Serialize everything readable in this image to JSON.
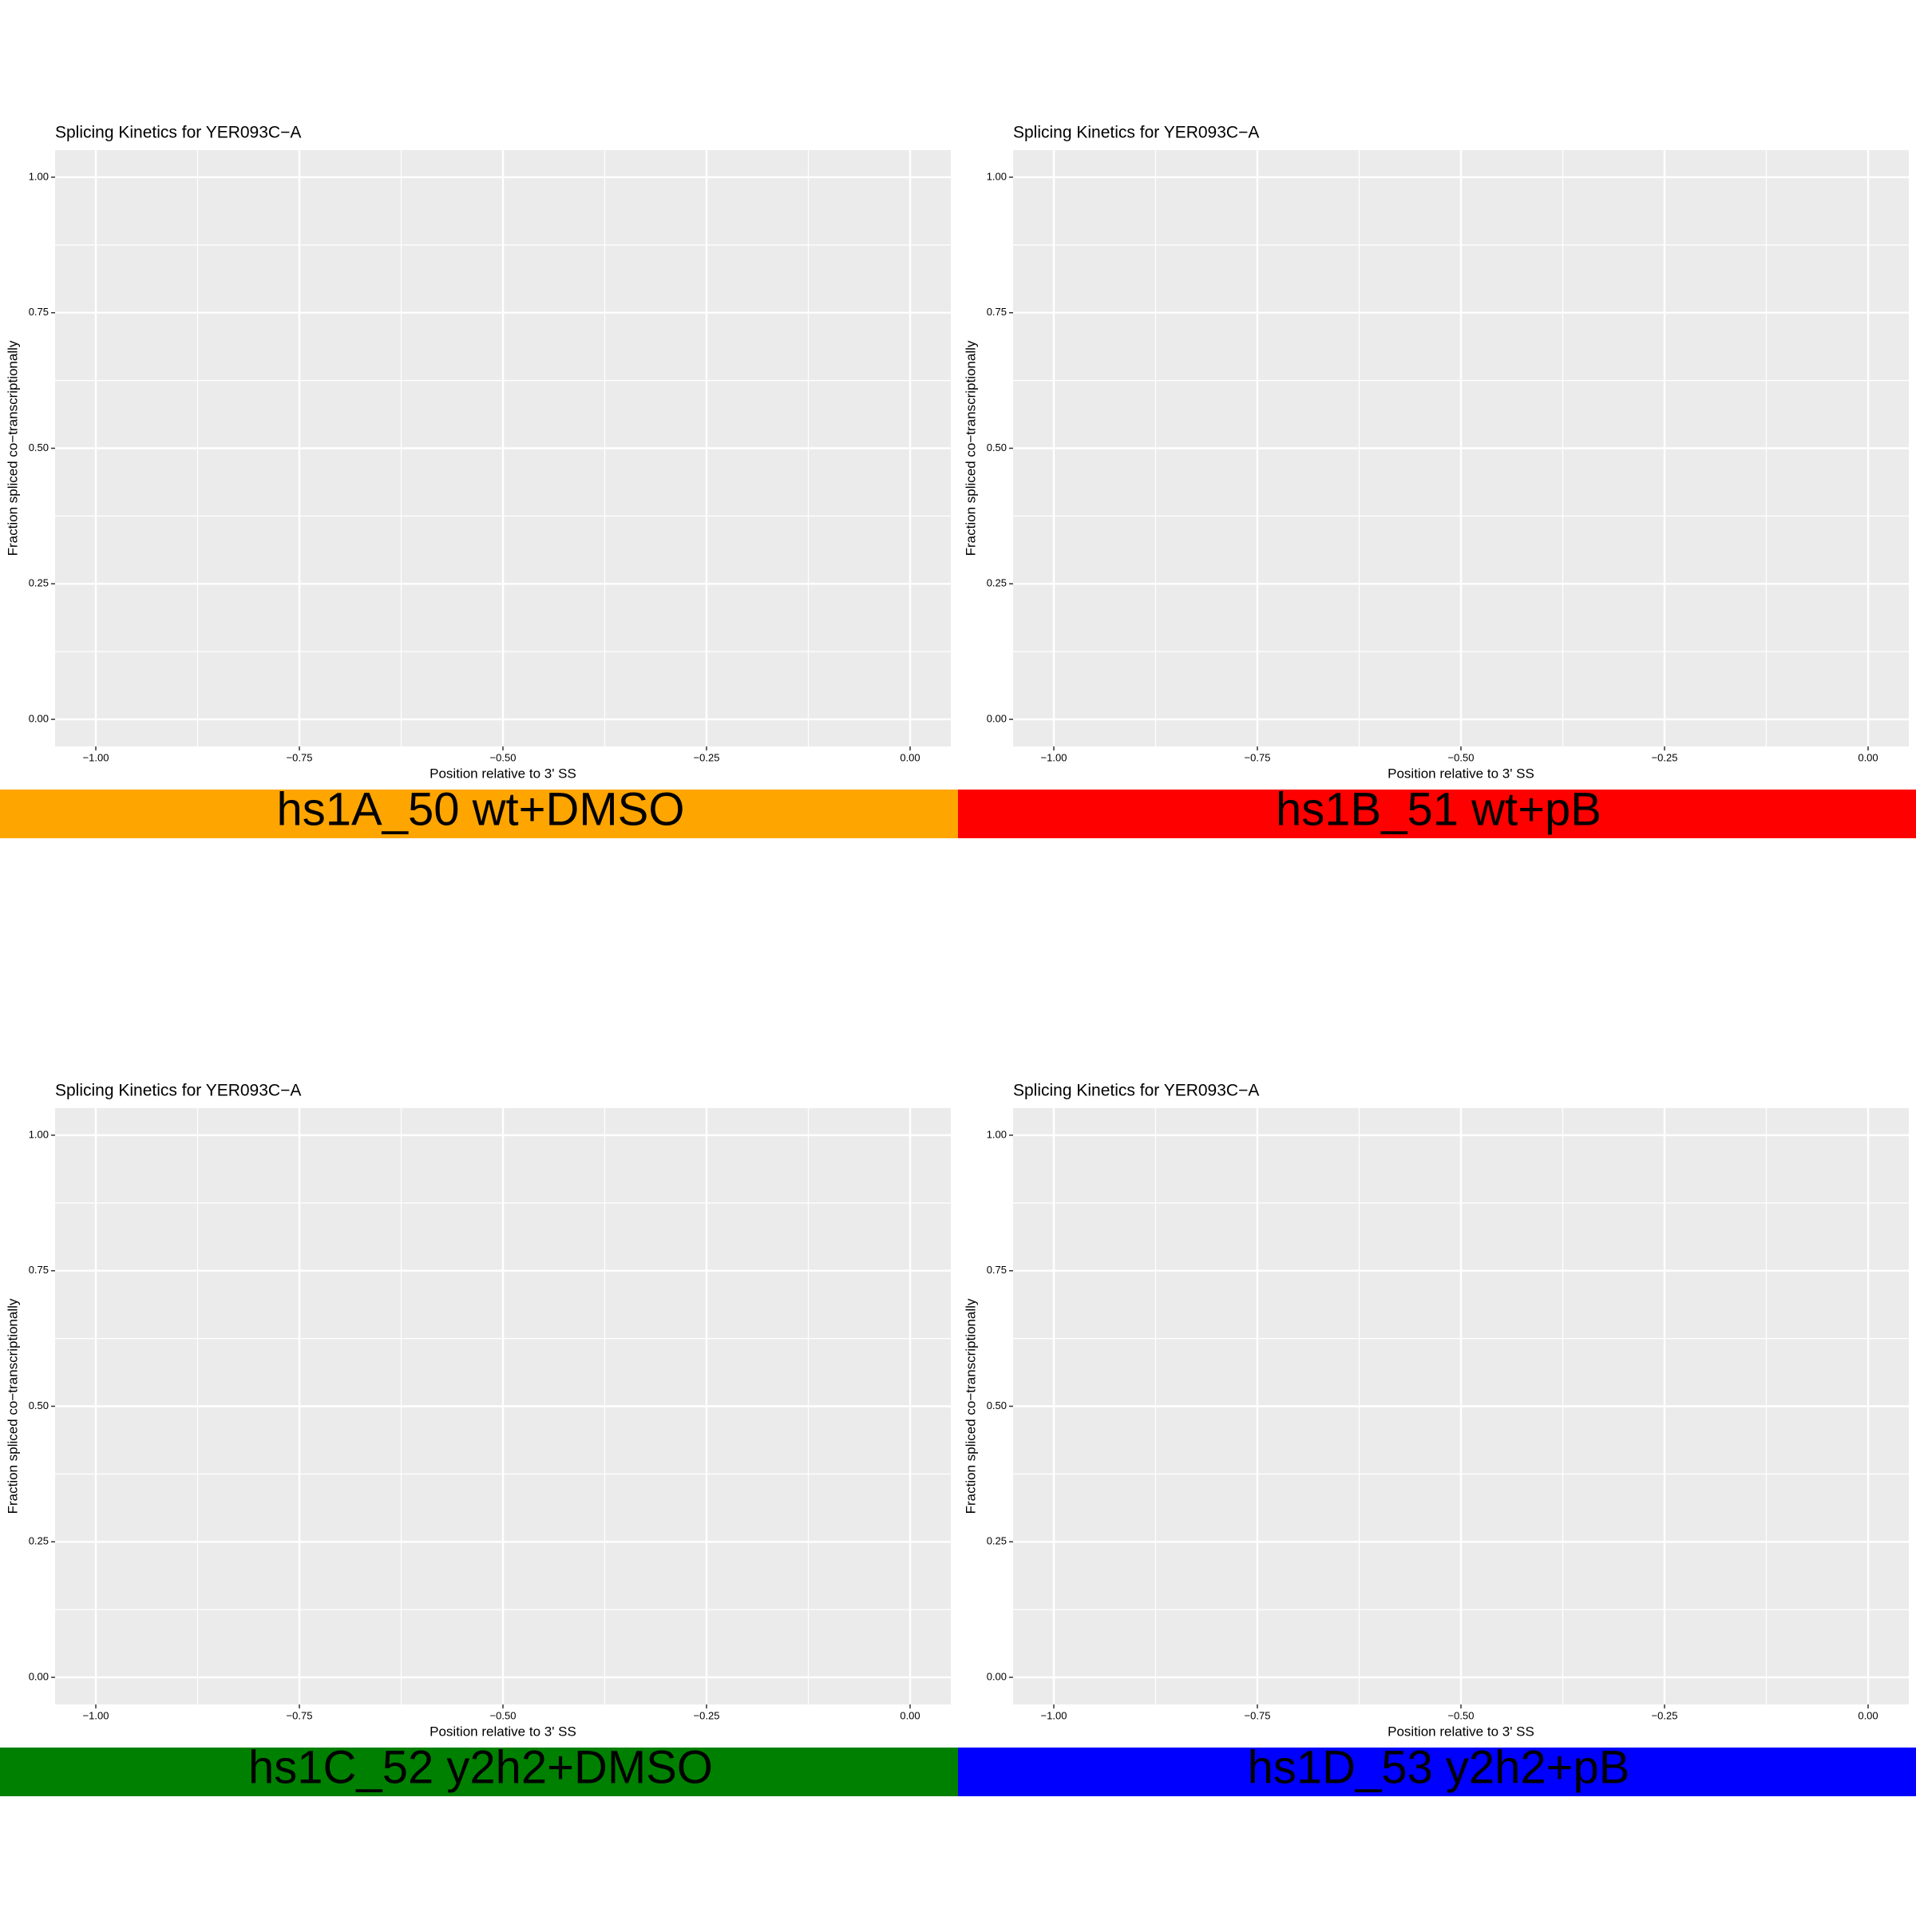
{
  "chart_data": [
    {
      "type": "scatter",
      "title": "Splicing Kinetics for YER093C−A",
      "xlabel": "Position relative to 3' SS",
      "ylabel": "Fraction spliced co−transcriptionally",
      "xlim": [
        -1.05,
        0.05
      ],
      "xticks": [
        {
          "value": -1,
          "label": "−1.00"
        },
        {
          "value": -0.75,
          "label": "−0.75"
        },
        {
          "value": -0.5,
          "label": "−0.50"
        },
        {
          "value": -0.25,
          "label": "−0.25"
        },
        {
          "value": 0,
          "label": "0.00"
        }
      ],
      "ylim": [
        -0.05,
        1.05
      ],
      "yticks": [
        {
          "value": 0,
          "label": "0.00"
        },
        0.25,
        {
          "value": 0.5,
          "label": "0.50"
        },
        0.75,
        {
          "value": 1,
          "label": "1.00"
        }
      ],
      "grid": true,
      "label": "hs1A_50 wt+DMSO",
      "label_color": "#ffa500"
    },
    {
      "type": "scatter",
      "title": "Splicing Kinetics for YER093C−A",
      "xlabel": "Position relative to 3' SS",
      "ylabel": "Fraction spliced co−transcriptionally",
      "xlim": [
        -1.05,
        0.05
      ],
      "xticks": [
        {
          "value": -1,
          "label": "−1.00"
        },
        {
          "value": -0.75,
          "label": "−0.75"
        },
        {
          "value": -0.5,
          "label": "−0.50"
        },
        {
          "value": -0.25,
          "label": "−0.25"
        },
        {
          "value": 0,
          "label": "0.00"
        }
      ],
      "ylim": [
        -0.05,
        1.05
      ],
      "yticks": [
        {
          "value": 0,
          "label": "0.00"
        },
        0.25,
        {
          "value": 0.5,
          "label": "0.50"
        },
        0.75,
        {
          "value": 1,
          "label": "1.00"
        }
      ],
      "grid": true,
      "label": "hs1B_51 wt+pB",
      "label_color": "#ff0000"
    },
    {
      "type": "scatter",
      "title": "Splicing Kinetics for YER093C−A",
      "xlabel": "Position relative to 3' SS",
      "ylabel": "Fraction spliced co−transcriptionally",
      "xlim": [
        -1.05,
        0.05
      ],
      "xticks": [
        {
          "value": -1,
          "label": "−1.00"
        },
        {
          "value": -0.75,
          "label": "−0.75"
        },
        {
          "value": -0.5,
          "label": "−0.50"
        },
        {
          "value": -0.25,
          "label": "−0.25"
        },
        {
          "value": 0,
          "label": "0.00"
        }
      ],
      "ylim": [
        -0.05,
        1.05
      ],
      "yticks": [
        {
          "value": 0,
          "label": "0.00"
        },
        0.25,
        {
          "value": 0.5,
          "label": "0.50"
        },
        0.75,
        {
          "value": 1,
          "label": "1.00"
        }
      ],
      "grid": true,
      "label": "hs1C_52 y2h2+DMSO",
      "label_color": "#008000"
    },
    {
      "type": "scatter",
      "title": "Splicing Kinetics for YER093C−A",
      "xlabel": "Position relative to 3' SS",
      "ylabel": "Fraction spliced co−transcriptionally",
      "xlim": [
        -1.05,
        0.05
      ],
      "xticks": [
        {
          "value": -1,
          "label": "−1.00"
        },
        {
          "value": -0.75,
          "label": "−0.75"
        },
        {
          "value": -0.5,
          "label": "−0.50"
        },
        {
          "value": -0.25,
          "label": "−0.25"
        },
        {
          "value": 0,
          "label": "0.00"
        }
      ],
      "ylim": [
        -0.05,
        1.05
      ],
      "yticks": [
        {
          "value": 0,
          "label": "0.00"
        },
        0.25,
        {
          "value": 0.5,
          "label": "0.50"
        },
        0.75,
        {
          "value": 1,
          "label": "1.00"
        }
      ],
      "grid": true,
      "label": "hs1D_53 y2h2+pB",
      "label_color": "#0000ff"
    }
  ]
}
